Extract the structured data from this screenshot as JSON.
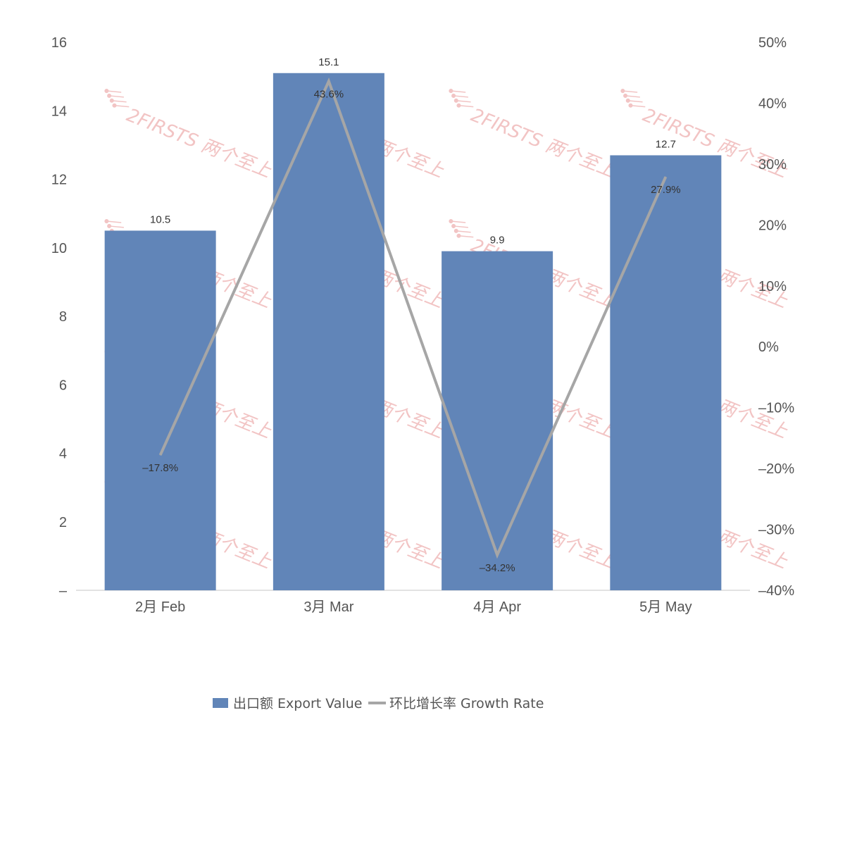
{
  "chart_data": {
    "type": "bar",
    "categories": [
      "2月 Feb",
      "3月 Mar",
      "4月 Apr",
      "5月 May"
    ],
    "series": [
      {
        "name": "出口额 Export Value",
        "type": "bar",
        "axis": "left",
        "color": "#6185b8",
        "values": [
          10.5,
          15.1,
          9.9,
          12.7
        ],
        "labels": [
          "10.5",
          "15.1",
          "9.9",
          "12.7"
        ]
      },
      {
        "name": "环比增长率 Growth Rate",
        "type": "line",
        "axis": "right",
        "color": "#a6a6a6",
        "values": [
          -17.8,
          43.6,
          -34.2,
          27.9
        ],
        "labels": [
          "–17.8%",
          "43.6%",
          "–34.2%",
          "27.9%"
        ]
      }
    ],
    "y_left": {
      "ylim": [
        0,
        16
      ],
      "ticks": [
        0,
        2,
        4,
        6,
        8,
        10,
        12,
        14,
        16
      ],
      "tick_labels": [
        "–",
        "2",
        "4",
        "6",
        "8",
        "10",
        "12",
        "14",
        "16"
      ]
    },
    "y_right": {
      "ylim": [
        -40,
        50
      ],
      "ticks": [
        -40,
        -30,
        -20,
        -10,
        0,
        10,
        20,
        30,
        40,
        50
      ],
      "tick_labels": [
        "–40%",
        "–30%",
        "–20%",
        "–10%",
        "0%",
        "10%",
        "20%",
        "30%",
        "40%",
        "50%"
      ]
    },
    "legend": {
      "position": "bottom",
      "items": [
        "出口额 Export Value",
        "环比增长率 Growth Rate"
      ]
    },
    "grid": false
  },
  "watermark": {
    "text": "2FIRSTS 两个至上",
    "color": "#f2c4c4"
  }
}
